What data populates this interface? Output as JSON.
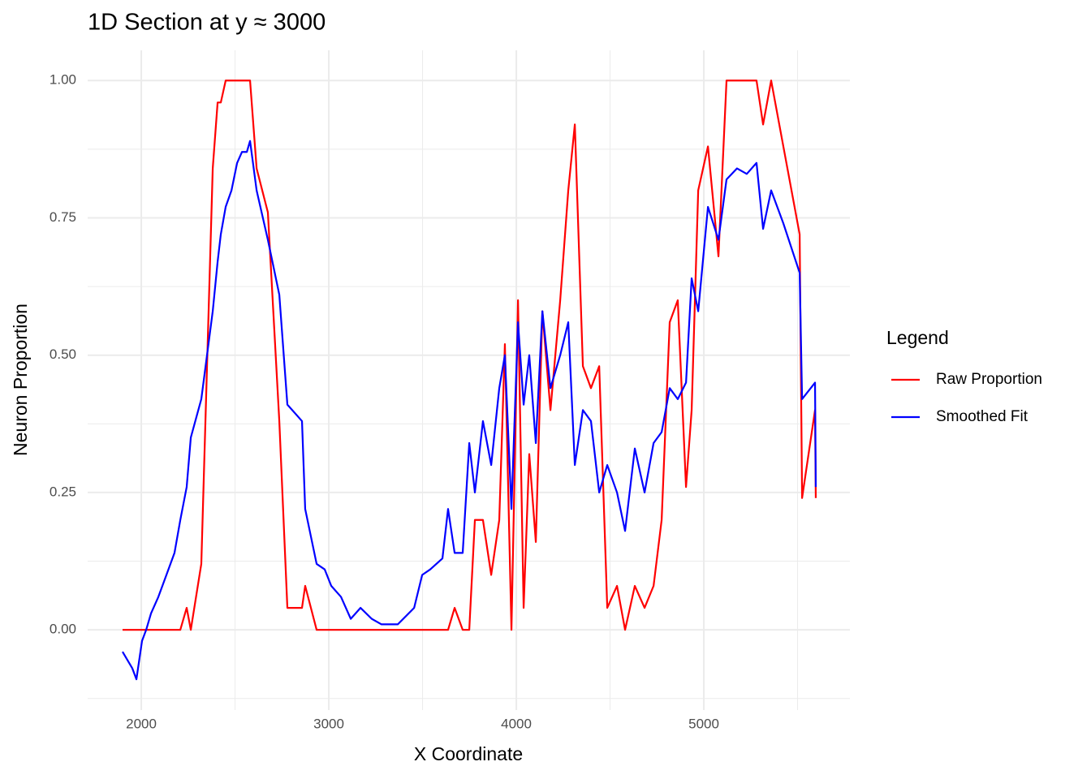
{
  "chart_data": {
    "type": "line",
    "title": "1D Section at y ≈ 3000",
    "xlabel": "X Coordinate",
    "ylabel": "Neuron Proportion",
    "legend_title": "Legend",
    "legend_position": "right",
    "grid": true,
    "xlim": [
      1714,
      5779
    ],
    "ylim": [
      -0.146,
      1.055
    ],
    "xticks": [
      2000,
      3000,
      4000,
      5000
    ],
    "yticks": [
      {
        "value": 0,
        "label": "0.00"
      },
      {
        "value": 0.25,
        "label": "0.25"
      },
      {
        "value": 0.5,
        "label": "0.50"
      },
      {
        "value": 0.75,
        "label": "0.75"
      },
      {
        "value": 1,
        "label": "1.00"
      }
    ],
    "xminor": [
      2500,
      3500,
      4500,
      5500
    ],
    "yminor": [
      -0.125,
      0.125,
      0.375,
      0.625,
      0.875
    ],
    "x": [
      1900,
      1952,
      1974,
      2004,
      2026,
      2052,
      2091,
      2134,
      2177,
      2208,
      2242,
      2264,
      2320,
      2381,
      2407,
      2424,
      2450,
      2481,
      2511,
      2537,
      2563,
      2580,
      2615,
      2675,
      2736,
      2779,
      2857,
      2874,
      2935,
      2978,
      3013,
      3065,
      3117,
      3169,
      3229,
      3281,
      3368,
      3455,
      3498,
      3541,
      3606,
      3636,
      3671,
      3714,
      3749,
      3779,
      3822,
      3866,
      3909,
      3939,
      3974,
      4009,
      4039,
      4069,
      4104,
      4139,
      4182,
      4234,
      4277,
      4312,
      4355,
      4398,
      4442,
      4485,
      4537,
      4580,
      4632,
      4684,
      4732,
      4775,
      4818,
      4861,
      4905,
      4935,
      4970,
      5022,
      5078,
      5121,
      5177,
      5229,
      5281,
      5316,
      5359,
      5424,
      5511,
      5524,
      5593,
      5597
    ],
    "series": [
      {
        "name": "Raw Proportion",
        "color": "#ff0000",
        "values": [
          0,
          0,
          0,
          0,
          0,
          0,
          0,
          0,
          0,
          0,
          0.04,
          0,
          0.12,
          0.84,
          0.96,
          0.96,
          1,
          1,
          1,
          1,
          1,
          1,
          0.84,
          0.76,
          0.38,
          0.04,
          0.04,
          0.08,
          0,
          0,
          0,
          0,
          0,
          0,
          0,
          0,
          0,
          0,
          0,
          0,
          0,
          0,
          0.04,
          0,
          0,
          0.2,
          0.2,
          0.1,
          0.2,
          0.52,
          0,
          0.6,
          0.04,
          0.32,
          0.16,
          0.58,
          0.4,
          0.6,
          0.8,
          0.92,
          0.48,
          0.44,
          0.48,
          0.04,
          0.08,
          0,
          0.08,
          0.04,
          0.08,
          0.2,
          0.56,
          0.6,
          0.26,
          0.4,
          0.8,
          0.88,
          0.68,
          1,
          1,
          1,
          1,
          0.92,
          1,
          0.88,
          0.72,
          0.24,
          0.4,
          0.24
        ]
      },
      {
        "name": "Smoothed Fit",
        "color": "#0000ff",
        "values": [
          -0.04,
          -0.07,
          -0.09,
          -0.02,
          0,
          0.03,
          0.06,
          0.1,
          0.14,
          0.2,
          0.26,
          0.35,
          0.42,
          0.58,
          0.67,
          0.72,
          0.77,
          0.8,
          0.85,
          0.87,
          0.87,
          0.89,
          0.8,
          0.71,
          0.61,
          0.41,
          0.38,
          0.22,
          0.12,
          0.11,
          0.08,
          0.06,
          0.02,
          0.04,
          0.02,
          0.01,
          0.01,
          0.04,
          0.1,
          0.11,
          0.13,
          0.22,
          0.14,
          0.14,
          0.34,
          0.25,
          0.38,
          0.3,
          0.44,
          0.5,
          0.22,
          0.56,
          0.41,
          0.5,
          0.34,
          0.58,
          0.44,
          0.5,
          0.56,
          0.3,
          0.4,
          0.38,
          0.25,
          0.3,
          0.25,
          0.18,
          0.33,
          0.25,
          0.34,
          0.36,
          0.44,
          0.42,
          0.45,
          0.64,
          0.58,
          0.77,
          0.71,
          0.82,
          0.84,
          0.83,
          0.85,
          0.73,
          0.8,
          0.74,
          0.65,
          0.42,
          0.45,
          0.26
        ]
      }
    ]
  }
}
